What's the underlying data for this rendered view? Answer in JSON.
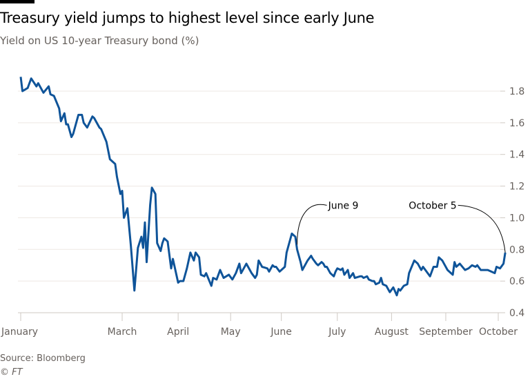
{
  "chart_data": {
    "type": "line",
    "title": "Treasury yield jumps to highest level since early June",
    "subtitle": "Yield on US 10-year Treasury bond (%)",
    "xlabel": "",
    "ylabel": "",
    "ylim": [
      0.4,
      1.8
    ],
    "yticks": [
      "0.4",
      "0.6",
      "0.8",
      "1.0",
      "1.2",
      "1.4",
      "1.6",
      "1.8"
    ],
    "xlim": [
      0,
      277
    ],
    "xticks": [
      {
        "label": "January",
        "day": 0
      },
      {
        "label": "March",
        "day": 58
      },
      {
        "label": "April",
        "day": 90
      },
      {
        "label": "May",
        "day": 120
      },
      {
        "label": "June",
        "day": 149
      },
      {
        "label": "July",
        "day": 181
      },
      {
        "label": "August",
        "day": 212
      },
      {
        "label": "September",
        "day": 243
      },
      {
        "label": "October",
        "day": 273
      }
    ],
    "grid": true,
    "series": [
      {
        "name": "US 10-year Treasury yield",
        "color": "#0f5499",
        "x": [
          0,
          1,
          4,
          6,
          9,
          10,
          13,
          16,
          17,
          19,
          22,
          23,
          25,
          26,
          27,
          29,
          30,
          33,
          35,
          36,
          38,
          41,
          42,
          45,
          46,
          49,
          51,
          54,
          55,
          57,
          58,
          59,
          61,
          63,
          65,
          67,
          69,
          70,
          71,
          72,
          74,
          75,
          77,
          78,
          80,
          81,
          82,
          84,
          86,
          87,
          88,
          90,
          91,
          93,
          95,
          97,
          99,
          100,
          102,
          103,
          105,
          106,
          109,
          110,
          112,
          114,
          116,
          119,
          121,
          123,
          125,
          126,
          129,
          131,
          132,
          134,
          135,
          136,
          138,
          141,
          142,
          144,
          145,
          146,
          148,
          149,
          151,
          152,
          155,
          157,
          158,
          160,
          161,
          163,
          164,
          166,
          167,
          169,
          170,
          172,
          173,
          174,
          175,
          177,
          179,
          180,
          181,
          183,
          184,
          185,
          187,
          188,
          190,
          191,
          194,
          195,
          196,
          198,
          199,
          201,
          202,
          203,
          205,
          206,
          207,
          209,
          210,
          211,
          213,
          215,
          216,
          217,
          219,
          221,
          222,
          225,
          227,
          229,
          230,
          234,
          236,
          238,
          239,
          241,
          242,
          244,
          247,
          248,
          249,
          251,
          254,
          256,
          258,
          260,
          261,
          263,
          265,
          267,
          269,
          271,
          272,
          274,
          276,
          277
        ],
        "y": [
          1.89,
          1.8,
          1.82,
          1.88,
          1.83,
          1.85,
          1.79,
          1.83,
          1.78,
          1.77,
          1.69,
          1.61,
          1.66,
          1.59,
          1.59,
          1.51,
          1.53,
          1.65,
          1.65,
          1.6,
          1.57,
          1.64,
          1.63,
          1.57,
          1.56,
          1.48,
          1.37,
          1.34,
          1.26,
          1.15,
          1.17,
          1.0,
          1.06,
          0.82,
          0.54,
          0.81,
          0.88,
          0.81,
          0.97,
          0.72,
          1.08,
          1.19,
          1.15,
          0.84,
          0.79,
          0.84,
          0.87,
          0.85,
          0.68,
          0.74,
          0.69,
          0.59,
          0.6,
          0.6,
          0.68,
          0.78,
          0.73,
          0.78,
          0.75,
          0.64,
          0.63,
          0.65,
          0.57,
          0.62,
          0.61,
          0.67,
          0.62,
          0.64,
          0.61,
          0.65,
          0.71,
          0.65,
          0.71,
          0.67,
          0.65,
          0.62,
          0.64,
          0.73,
          0.69,
          0.68,
          0.66,
          0.7,
          0.69,
          0.69,
          0.66,
          0.67,
          0.69,
          0.78,
          0.9,
          0.88,
          0.8,
          0.72,
          0.67,
          0.71,
          0.73,
          0.76,
          0.74,
          0.71,
          0.7,
          0.72,
          0.71,
          0.69,
          0.69,
          0.65,
          0.63,
          0.66,
          0.68,
          0.67,
          0.68,
          0.64,
          0.67,
          0.62,
          0.65,
          0.62,
          0.63,
          0.63,
          0.62,
          0.63,
          0.61,
          0.6,
          0.6,
          0.58,
          0.59,
          0.62,
          0.58,
          0.57,
          0.55,
          0.53,
          0.56,
          0.51,
          0.55,
          0.54,
          0.57,
          0.58,
          0.65,
          0.73,
          0.71,
          0.67,
          0.69,
          0.63,
          0.69,
          0.69,
          0.75,
          0.73,
          0.71,
          0.67,
          0.64,
          0.72,
          0.69,
          0.71,
          0.67,
          0.68,
          0.7,
          0.69,
          0.7,
          0.67,
          0.67,
          0.67,
          0.66,
          0.65,
          0.69,
          0.68,
          0.71,
          0.78
        ]
      }
    ],
    "annotations": [
      {
        "text": "June 9",
        "day": 158,
        "value": 0.83,
        "label_day": 175,
        "label_value": 1.07
      },
      {
        "text": "October 5",
        "day": 277,
        "value": 0.78,
        "label_day": 250,
        "label_value": 1.07
      }
    ]
  },
  "source": "Source: Bloomberg",
  "credit": "© FT"
}
